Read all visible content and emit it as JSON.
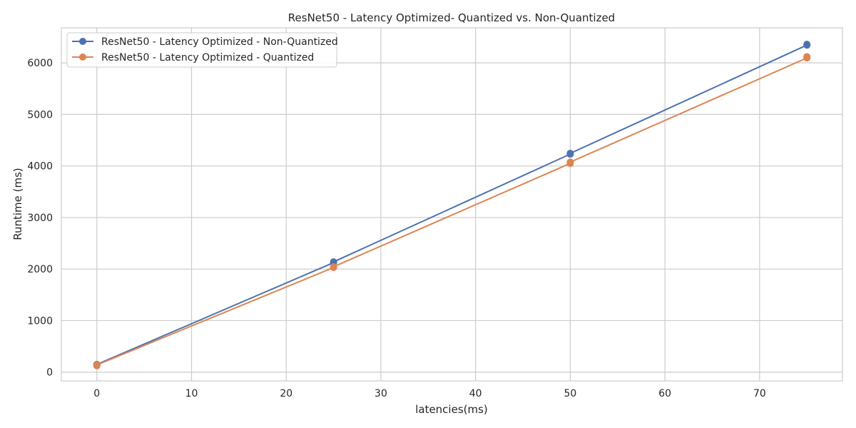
{
  "chart_data": {
    "type": "line",
    "title": "ResNet50 - Latency Optimized- Quantized vs. Non-Quantized",
    "xlabel": "latencies(ms)",
    "ylabel": "Runtime (ms)",
    "xlim": [
      -3.75,
      78.75
    ],
    "ylim": [
      -170,
      6680
    ],
    "xticks": [
      0,
      10,
      20,
      30,
      40,
      50,
      60,
      70
    ],
    "yticks": [
      0,
      1000,
      2000,
      3000,
      4000,
      5000,
      6000
    ],
    "grid": true,
    "legend_position": "top-left",
    "series": [
      {
        "name": "ResNet50 - Latency Optimized - Non-Quantized",
        "color": "#4c72b0",
        "points": [
          {
            "x": 0,
            "y": 140
          },
          {
            "x": 0,
            "y": 150
          },
          {
            "x": 25,
            "y": 2125
          },
          {
            "x": 25,
            "y": 2140
          },
          {
            "x": 50,
            "y": 4230
          },
          {
            "x": 50,
            "y": 4245
          },
          {
            "x": 75,
            "y": 6345
          },
          {
            "x": 75,
            "y": 6360
          }
        ]
      },
      {
        "name": "ResNet50 - Latency Optimized - Quantized",
        "color": "#dd8452",
        "points": [
          {
            "x": 0,
            "y": 125
          },
          {
            "x": 0,
            "y": 140
          },
          {
            "x": 25,
            "y": 2030
          },
          {
            "x": 25,
            "y": 2045
          },
          {
            "x": 50,
            "y": 4050
          },
          {
            "x": 50,
            "y": 4075
          },
          {
            "x": 75,
            "y": 6095
          },
          {
            "x": 75,
            "y": 6120
          }
        ]
      }
    ]
  }
}
